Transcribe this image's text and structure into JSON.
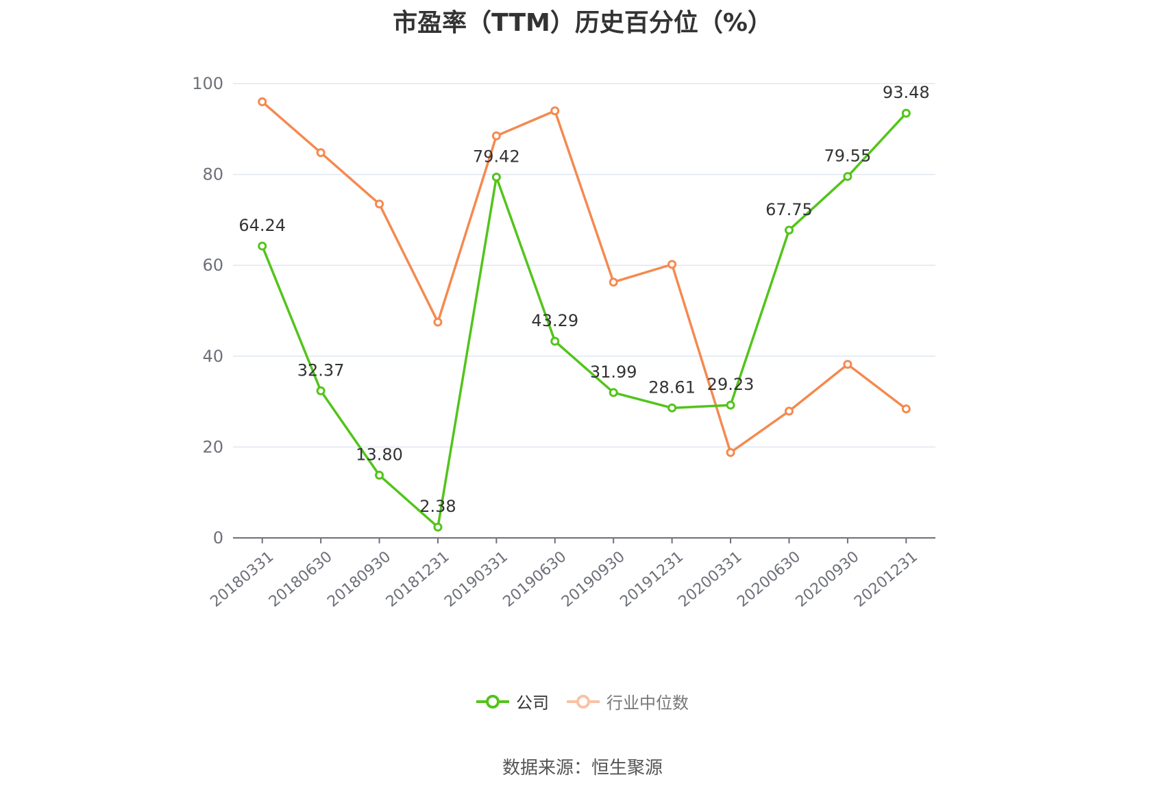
{
  "chart_data": {
    "type": "line",
    "title": "市盈率（TTM）历史百分位（%）",
    "categories": [
      "20180331",
      "20180630",
      "20180930",
      "20181231",
      "20190331",
      "20190630",
      "20190930",
      "20191231",
      "20200331",
      "20200630",
      "20200930",
      "20201231"
    ],
    "ylim": [
      0,
      100
    ],
    "yticks": [
      0,
      20,
      40,
      60,
      80,
      100
    ],
    "grid": true,
    "legend_position": "bottom",
    "series": [
      {
        "name": "公司",
        "color": "#52c41a",
        "values": [
          64.24,
          32.37,
          13.8,
          2.38,
          79.42,
          43.29,
          31.99,
          28.61,
          29.23,
          67.75,
          79.55,
          93.48
        ],
        "labels": [
          "64.24",
          "32.37",
          "13.80",
          "2.38",
          "79.42",
          "43.29",
          "31.99",
          "28.61",
          "29.23",
          "67.75",
          "79.55",
          "93.48"
        ]
      },
      {
        "name": "行业中位数",
        "color": "#f5894f",
        "values": [
          96.0,
          84.8,
          73.5,
          47.5,
          88.5,
          94.0,
          56.3,
          60.2,
          18.8,
          27.9,
          38.2,
          28.4
        ]
      }
    ]
  },
  "source_text": "数据来源：恒生聚源"
}
